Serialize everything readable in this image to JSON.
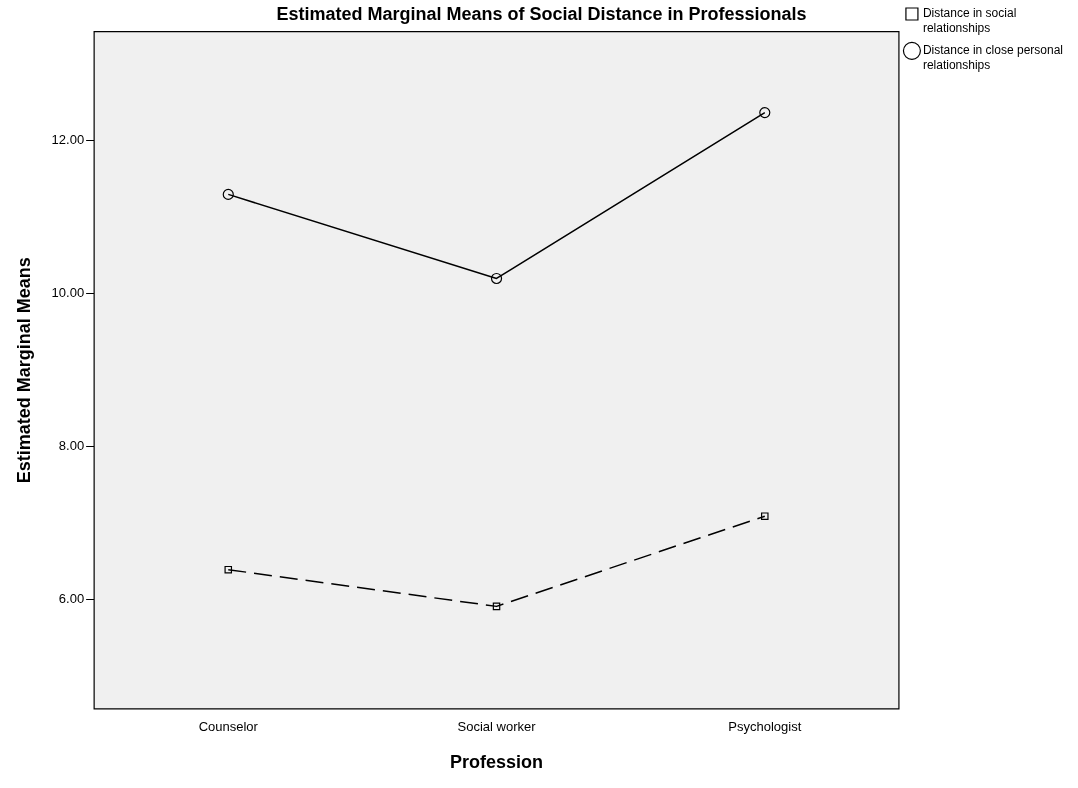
{
  "chart_data": {
    "type": "line",
    "title": "Estimated Marginal Means of Social Distance in Professionals",
    "xlabel": "Profession",
    "ylabel": "Estimated Marginal Means",
    "categories": [
      "Counselor",
      "Social worker",
      "Psychologist"
    ],
    "series": [
      {
        "name": "Distance in social relationships",
        "color": "#000000",
        "values": [
          6.39,
          5.91,
          7.09
        ],
        "marker": "square",
        "line_style": "dashed"
      },
      {
        "name": "Distance in close personal relationships",
        "color": "#000000",
        "values": [
          11.3,
          10.2,
          12.37
        ],
        "marker": "circle",
        "line_style": "solid"
      }
    ],
    "ylim": [
      4.57,
      13.43
    ],
    "yticks": [
      {
        "value": 6,
        "label": "6.00"
      },
      {
        "value": 8,
        "label": "8.00"
      },
      {
        "value": 10,
        "label": "10.00"
      },
      {
        "value": 12,
        "label": "12.00"
      }
    ],
    "grid": false,
    "legend": "right"
  }
}
